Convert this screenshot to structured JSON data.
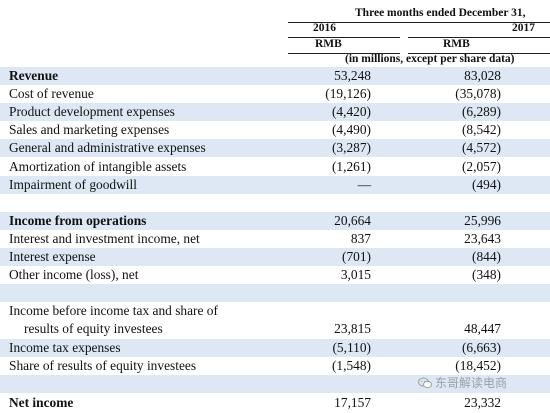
{
  "header": {
    "period": "Three months ended December 31,",
    "year_2016": "2016",
    "year_2017": "2017",
    "currency_2016": "RMB",
    "currency_2017": "RMB",
    "units": "(in millions, except per share data)"
  },
  "rows": [
    {
      "label": "Revenue",
      "v2016": "53,248",
      "v2017": "83,028"
    },
    {
      "label": "Cost of revenue",
      "v2016": "(19,126)",
      "v2017": "(35,078)"
    },
    {
      "label": "Product development expenses",
      "v2016": "(4,420)",
      "v2017": "(6,289)"
    },
    {
      "label": "Sales and marketing expenses",
      "v2016": "(4,490)",
      "v2017": "(8,542)"
    },
    {
      "label": "General and administrative expenses",
      "v2016": "(3,287)",
      "v2017": "(4,572)"
    },
    {
      "label": "Amortization of intangible assets",
      "v2016": "(1,261)",
      "v2017": "(2,057)"
    },
    {
      "label": "Impairment of goodwill",
      "v2016": "—",
      "v2017": "(494)"
    },
    {
      "label": "Income from operations",
      "v2016": "20,664",
      "v2017": "25,996"
    },
    {
      "label": "Interest and investment income, net",
      "v2016": "837",
      "v2017": "23,643"
    },
    {
      "label": "Interest expense",
      "v2016": "(701)",
      "v2017": "(844)"
    },
    {
      "label": "Other income (loss), net",
      "v2016": "3,015",
      "v2017": "(348)"
    },
    {
      "label": "Income before income tax and share of",
      "label2": "results of equity investees",
      "v2016": "23,815",
      "v2017": "48,447"
    },
    {
      "label": "Income tax expenses",
      "v2016": "(5,110)",
      "v2017": "(6,663)"
    },
    {
      "label": "Share of results of equity investees",
      "v2016": "(1,548)",
      "v2017": "(18,452)"
    },
    {
      "label": "Net income",
      "v2016": "17,157",
      "v2017": "23,332"
    }
  ],
  "watermark": {
    "text": "东哥解读电商",
    "icon": "wechat-icon"
  }
}
